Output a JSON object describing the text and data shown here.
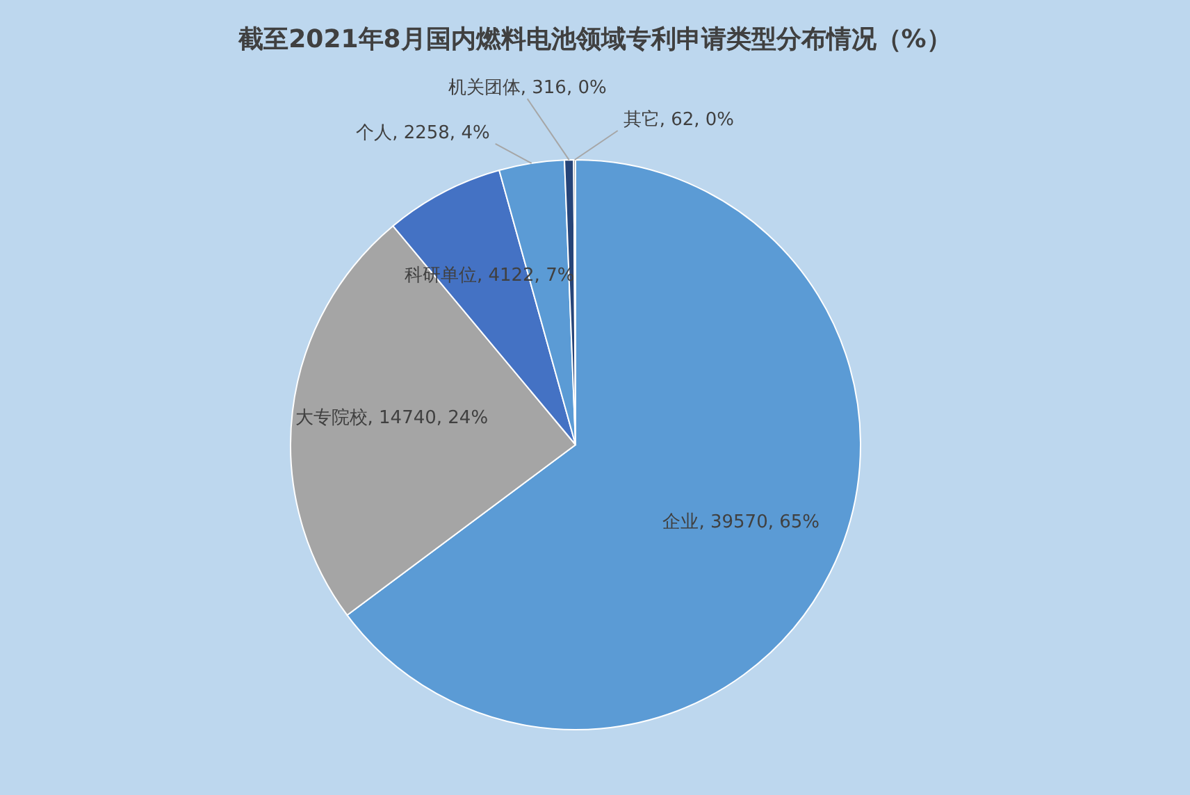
{
  "chart_data": {
    "type": "pie",
    "title": "截至2021年8月国内燃料电池领域专利申请类型分布情况（%）",
    "categories": [
      "企业",
      "大专院校",
      "科研单位",
      "个人",
      "机关团体",
      "其它"
    ],
    "values": [
      39570,
      14740,
      4122,
      2258,
      316,
      62
    ],
    "value_labels": [
      "39570, 65%",
      "14740, 24%",
      "4122, 7%",
      "2258, 4%",
      "316, 0%",
      "62, 0%"
    ],
    "colors": [
      "#5b9bd5",
      "#a5a5a5",
      "#4472c4",
      "#5b9bd5",
      "#264478",
      "#636363"
    ],
    "legend": false
  }
}
